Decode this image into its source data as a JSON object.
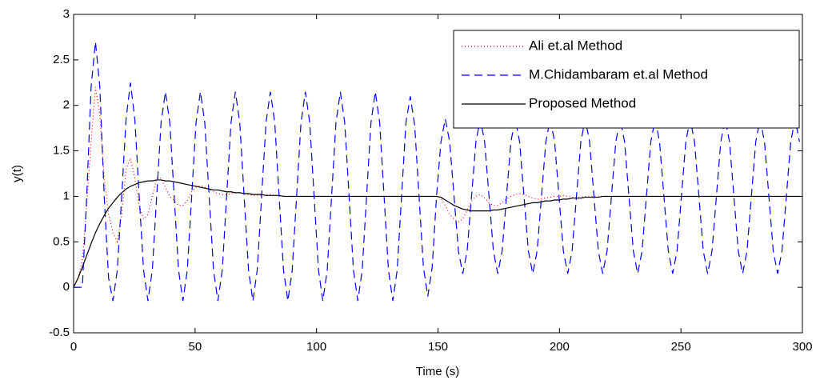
{
  "chart_data": {
    "type": "line",
    "xlabel": "Time (s)",
    "ylabel": "y(t)",
    "xlim": [
      0,
      300
    ],
    "xticks": [
      0,
      50,
      100,
      150,
      200,
      250,
      300
    ],
    "ylim": [
      -0.5,
      3
    ],
    "yticks": [
      -0.5,
      0,
      0.5,
      1,
      1.5,
      2,
      2.5,
      3
    ],
    "grid": false,
    "legend": "upper right",
    "x": [
      0,
      1.8,
      3.6,
      5.4,
      7.2,
      9,
      10.8,
      12.6,
      14.4,
      16.2,
      18,
      19.8,
      21.6,
      23.4,
      25.2,
      27,
      28.8,
      30.6,
      32.4,
      34.2,
      36,
      37.8,
      39.6,
      41.4,
      43.2,
      45,
      46.8,
      48.6,
      50.4,
      52.2,
      54,
      55.8,
      57.6,
      59.4,
      61.2,
      63,
      64.8,
      66.6,
      68.4,
      70.2,
      72,
      73.8,
      75.6,
      77.4,
      79.2,
      81,
      82.8,
      84.6,
      86.4,
      88.2,
      90,
      91.8,
      93.6,
      95.4,
      97.2,
      99,
      100.8,
      102.6,
      104.4,
      106.2,
      108,
      109.8,
      111.6,
      113.4,
      115.2,
      117,
      118.8,
      120.6,
      122.4,
      124.2,
      126,
      127.8,
      129.6,
      131.4,
      133.2,
      135,
      136.8,
      138.6,
      140.4,
      142.2,
      144,
      145.8,
      147.6,
      149.4,
      151.2,
      153,
      154.8,
      156.6,
      158.4,
      160.2,
      162,
      163.8,
      165.6,
      167.4,
      169.2,
      171,
      172.8,
      174.6,
      176.4,
      178.2,
      180,
      181.8,
      183.6,
      185.4,
      187.2,
      189,
      190.8,
      192.6,
      194.4,
      196.2,
      198,
      199.8,
      201.6,
      203.4,
      205.2,
      207,
      208.8,
      210.6,
      212.4,
      214.2,
      216,
      217.8,
      219.6,
      221.4,
      223.2,
      225,
      226.8,
      228.6,
      230.4,
      232.2,
      234,
      235.8,
      237.6,
      239.4,
      241.2,
      243,
      244.8,
      246.6,
      248.4,
      250.2,
      252,
      253.8,
      255.6,
      257.4,
      259.2,
      261,
      262.8,
      264.6,
      266.4,
      268.2,
      270,
      271.8,
      273.6,
      275.4,
      277.2,
      279,
      280.8,
      282.6,
      284.4,
      286.2,
      288,
      289.8,
      291.6,
      293.4,
      295.2,
      297,
      298.8
    ],
    "series": [
      {
        "name": "Ali et.al Method",
        "color": "#ff0000",
        "dash": "1,3",
        "values": [
          0,
          0.1,
          0.3,
          0.9,
          1.6,
          2.2,
          1.9,
          1.2,
          0.8,
          0.6,
          0.5,
          0.8,
          1.3,
          1.42,
          1.2,
          0.9,
          0.75,
          0.8,
          1,
          1.2,
          1.2,
          1.1,
          1,
          0.95,
          0.9,
          0.9,
          0.95,
          1.05,
          1.1,
          1.12,
          1.1,
          1.08,
          1.05,
          1.03,
          1.02,
          1.02,
          1.03,
          1.04,
          1.04,
          1.03,
          1.02,
          1.01,
          1.01,
          1.01,
          1.02,
          1.02,
          1.01,
          1.01,
          1,
          1,
          1,
          1,
          1,
          1,
          1,
          1,
          1,
          1,
          1,
          1,
          1,
          1,
          1,
          1,
          1,
          1,
          1,
          1,
          1,
          1,
          1,
          1,
          1,
          1,
          1,
          1,
          1,
          1,
          1,
          1,
          1,
          1,
          1,
          1,
          0.98,
          0.9,
          0.8,
          0.75,
          0.72,
          0.75,
          0.85,
          0.95,
          1,
          1.02,
          0.98,
          0.93,
          0.9,
          0.9,
          0.93,
          0.97,
          1,
          1.02,
          1.03,
          1.02,
          1,
          0.98,
          0.97,
          0.97,
          0.98,
          0.99,
          1,
          1,
          1.01,
          1,
          0.99,
          0.99,
          0.99,
          1,
          1,
          1,
          1,
          1,
          1,
          1,
          1,
          1,
          1,
          1,
          1,
          1,
          1,
          1,
          1,
          1,
          1,
          1,
          1,
          1,
          1,
          1,
          1,
          1,
          1,
          1,
          1,
          1,
          1,
          1,
          1,
          1,
          1,
          1,
          1,
          1,
          1,
          1,
          1,
          1,
          1,
          1,
          1,
          1,
          1,
          1,
          1,
          1,
          1
        ]
      },
      {
        "name": "M.Chidambaram et.al Method",
        "color": "#0000ff",
        "dash": "10,6",
        "values": [
          0,
          0,
          0,
          1,
          2.2,
          2.7,
          2.2,
          1,
          0.1,
          -0.15,
          0.19,
          1,
          1.85,
          2.25,
          1.85,
          1,
          0.19,
          -0.15,
          0.19,
          1,
          1.81,
          2.15,
          1.81,
          1,
          0.19,
          -0.15,
          0.19,
          1,
          1.81,
          2.15,
          1.81,
          1,
          0.19,
          -0.15,
          0.19,
          1,
          1.81,
          2.15,
          1.81,
          1,
          0.19,
          -0.15,
          0.19,
          1,
          1.81,
          2.15,
          1.81,
          1,
          0.19,
          -0.15,
          0.19,
          1,
          1.81,
          2.15,
          1.81,
          1,
          0.19,
          -0.15,
          0.19,
          1,
          1.81,
          2.15,
          1.81,
          1,
          0.19,
          -0.15,
          0.19,
          1,
          1.81,
          2.15,
          1.81,
          1,
          0.19,
          -0.15,
          0.19,
          1,
          1.81,
          2.1,
          1.78,
          1,
          0.22,
          -0.1,
          0.22,
          1,
          1.6,
          1.85,
          1.6,
          1,
          0.4,
          0.15,
          0.4,
          1,
          1.6,
          1.85,
          1.6,
          1,
          0.4,
          0.15,
          0.4,
          1,
          1.6,
          1.85,
          1.6,
          1,
          0.4,
          0.15,
          0.4,
          1,
          1.6,
          1.85,
          1.6,
          1,
          0.4,
          0.15,
          0.4,
          1,
          1.6,
          1.85,
          1.6,
          1,
          0.4,
          0.15,
          0.4,
          1,
          1.6,
          1.85,
          1.6,
          1,
          0.4,
          0.15,
          0.4,
          1,
          1.6,
          1.85,
          1.6,
          1,
          0.4,
          0.15,
          0.4,
          1,
          1.6,
          1.85,
          1.6,
          1,
          0.4,
          0.15,
          0.4,
          1,
          1.6,
          1.85,
          1.6,
          1,
          0.4,
          0.15,
          0.4,
          1,
          1.6,
          1.85,
          1.6,
          1,
          0.4,
          0.15,
          0.4,
          1,
          1.6,
          1.85,
          1.6
        ]
      },
      {
        "name": "Proposed Method",
        "color": "#000000",
        "dash": "none",
        "values": [
          0,
          0.1,
          0.22,
          0.35,
          0.48,
          0.6,
          0.7,
          0.79,
          0.87,
          0.93,
          0.99,
          1.04,
          1.08,
          1.11,
          1.13,
          1.15,
          1.16,
          1.17,
          1.17,
          1.18,
          1.18,
          1.17,
          1.17,
          1.16,
          1.15,
          1.14,
          1.13,
          1.12,
          1.11,
          1.1,
          1.09,
          1.08,
          1.07,
          1.07,
          1.06,
          1.05,
          1.05,
          1.04,
          1.04,
          1.03,
          1.03,
          1.02,
          1.02,
          1.02,
          1.01,
          1.01,
          1.01,
          1.01,
          1,
          1,
          1,
          1,
          1,
          1,
          1,
          1,
          1,
          1,
          1,
          1,
          1,
          1,
          1,
          1,
          1,
          1,
          1,
          1,
          1,
          1,
          1,
          1,
          1,
          1,
          1,
          1,
          1,
          1,
          1,
          1,
          1,
          1,
          1,
          1,
          0.99,
          0.96,
          0.93,
          0.9,
          0.88,
          0.86,
          0.85,
          0.84,
          0.84,
          0.84,
          0.84,
          0.84,
          0.85,
          0.85,
          0.86,
          0.87,
          0.88,
          0.89,
          0.9,
          0.91,
          0.92,
          0.93,
          0.93,
          0.94,
          0.95,
          0.95,
          0.96,
          0.96,
          0.97,
          0.97,
          0.98,
          0.98,
          0.98,
          0.99,
          0.99,
          0.99,
          0.99,
          1,
          1,
          1,
          1,
          1,
          1,
          1,
          1,
          1,
          1,
          1,
          1,
          1,
          1,
          1,
          1,
          1,
          1,
          1,
          1,
          1,
          1,
          1,
          1,
          1,
          1,
          1,
          1,
          1,
          1,
          1,
          1,
          1,
          1,
          1,
          1,
          1,
          1,
          1,
          1,
          1,
          1,
          1,
          1,
          1,
          1
        ]
      }
    ]
  }
}
